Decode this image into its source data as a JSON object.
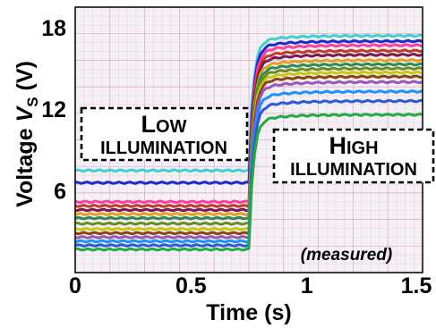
{
  "chart_data": {
    "type": "line",
    "title": "",
    "xlabel": "Time (s)",
    "ylabel": {
      "main": "Voltage ",
      "var": "V",
      "sub": "S",
      "unit": " (V)"
    },
    "xlim": [
      0,
      1.5
    ],
    "ylim": [
      0,
      19.5
    ],
    "xticks": [
      {
        "value": 0,
        "label": "0"
      },
      {
        "value": 0.5,
        "label": "0.5"
      },
      {
        "value": 1,
        "label": "1"
      },
      {
        "value": 1.5,
        "label": "1.5"
      }
    ],
    "yticks": [
      {
        "value": 6,
        "label": "6"
      },
      {
        "value": 12,
        "label": "12"
      },
      {
        "value": 18,
        "label": "18"
      }
    ],
    "grid": true,
    "step_time": 0.75,
    "annotations": {
      "low": {
        "cap1": "L",
        "rest1": "OW",
        "line2": "ILLUMINATION"
      },
      "high": {
        "cap1": "H",
        "rest1": "IGH",
        "line2": "ILLUMINATION"
      },
      "note": "(measured)"
    },
    "series": [
      {
        "color": "#3fd0d0",
        "low": 7.5,
        "high": 17.4
      },
      {
        "color": "#1a2bd0",
        "low": 6.6,
        "high": 17.0
      },
      {
        "color": "#ff3da0",
        "low": 5.2,
        "high": 16.7
      },
      {
        "color": "#c0392b",
        "low": 4.9,
        "high": 16.3
      },
      {
        "color": "#7a1a4f",
        "low": 4.6,
        "high": 16.0
      },
      {
        "color": "#e6a020",
        "low": 4.3,
        "high": 15.6
      },
      {
        "color": "#2e8b57",
        "low": 4.0,
        "high": 15.3
      },
      {
        "color": "#6b8e23",
        "low": 3.6,
        "high": 15.0
      },
      {
        "color": "#c8c814",
        "low": 3.2,
        "high": 14.7
      },
      {
        "color": "#8b4513",
        "low": 2.9,
        "high": 14.4
      },
      {
        "color": "#9b59b6",
        "low": 2.6,
        "high": 14.0
      },
      {
        "color": "#1e90ff",
        "low": 2.3,
        "high": 13.3
      },
      {
        "color": "#2a5bd7",
        "low": 2.0,
        "high": 12.6
      },
      {
        "color": "#22aa44",
        "low": 1.7,
        "high": 11.6
      }
    ]
  }
}
